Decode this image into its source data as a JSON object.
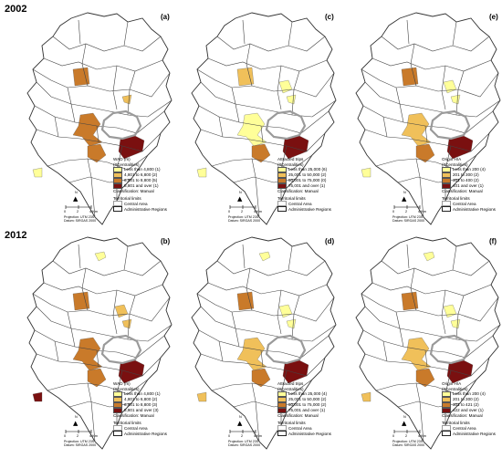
{
  "years": [
    "2002",
    "2012"
  ],
  "colors": {
    "class1": "#ffff99",
    "class2": "#f0c05a",
    "class3": "#c97a2a",
    "class4": "#7a1010",
    "central": "#d8d8d8",
    "border": "#333333"
  },
  "panels": [
    {
      "id": "a",
      "label": "(a)",
      "year": "2002",
      "legend_title": "WAD (m)",
      "legend_sub": "(#Centralities)",
      "items": [
        "Less than 4,800 (1)",
        "4,801 to 6,800 (2)",
        "6,801 to 8,800 (5)",
        "8,801 and over (1)"
      ],
      "classification": "Classification: Manual",
      "territorial": "Territorial limits",
      "central": "Central Area",
      "admin": "Administrative Regions",
      "regions": {
        "r1": 0,
        "r2": 0,
        "r3": 3,
        "r4": 2,
        "r5": 3,
        "r6": 3,
        "r7": 1,
        "r8": 4
      }
    },
    {
      "id": "c",
      "label": "(c)",
      "year": "2002",
      "legend_title": "Attracted trips",
      "legend_sub": "(#Centralities)",
      "items": [
        "Less than 25,000 (6)",
        "25,001 to 50,000 (2)",
        "50,001 to 75,000 (0)",
        "75,001 and over (1)"
      ],
      "classification": "Classification: Manual",
      "territorial": "Territorial limits",
      "central": "Central Area",
      "admin": "Administrative Regions",
      "regions": {
        "r1": 0,
        "r2": 1,
        "r3": 2,
        "r4": 1,
        "r5": 1,
        "r6": 3,
        "r7": 1,
        "r8": 4
      }
    },
    {
      "id": "e",
      "label": "(e)",
      "year": "2002",
      "legend_title": "Origin H/A",
      "legend_sub": "(#Centralities)",
      "items": [
        "Less than 200 (4)",
        "201 to 300 (2)",
        "301 to 400 (2)",
        "401 and over (1)"
      ],
      "classification": "Classification: Manual",
      "territorial": "Territorial limits",
      "central": "Central Area",
      "admin": "Administrative Regions",
      "regions": {
        "r1": 0,
        "r2": 1,
        "r3": 3,
        "r4": 1,
        "r5": 2,
        "r6": 3,
        "r7": 1,
        "r8": 4
      }
    },
    {
      "id": "b",
      "label": "(b)",
      "year": "2012",
      "legend_title": "WAD (m)",
      "legend_sub": "(#Centralities)",
      "items": [
        "Less than 4,800 (1)",
        "4,801 to 6,800 (2)",
        "6,801 to 8,800 (3)",
        "8,801 and over (3)"
      ],
      "classification": "Classification: Manual",
      "territorial": "Territorial limits",
      "central": "Central Area",
      "admin": "Administrative Regions",
      "regions": {
        "r1": 1,
        "r2": 2,
        "r3": 3,
        "r4": 2,
        "r5": 3,
        "r6": 3,
        "r7": 4,
        "r8": 4
      }
    },
    {
      "id": "d",
      "label": "(d)",
      "year": "2012",
      "legend_title": "Attracted trips",
      "legend_sub": "(#Centralities)",
      "items": [
        "Less than 25,000 (4)",
        "25,001 to 50,000 (2)",
        "50,001 to 75,000 (2)",
        "75,001 and over (1)"
      ],
      "classification": "Classification: Manual",
      "territorial": "Territorial limits",
      "central": "Central Area",
      "admin": "Administrative Regions",
      "regions": {
        "r1": 1,
        "r2": 1,
        "r3": 3,
        "r4": 1,
        "r5": 2,
        "r6": 3,
        "r7": 2,
        "r8": 4
      }
    },
    {
      "id": "f",
      "label": "(f)",
      "year": "2012",
      "legend_title": "Origin H/A",
      "legend_sub": "(#Centralities)",
      "items": [
        "Less than 200 (4)",
        "201 to 300 (2)",
        "301 to 421 (2)",
        "422 and over (1)"
      ],
      "classification": "Classification: Manual",
      "territorial": "Territorial limits",
      "central": "Central Area",
      "admin": "Administrative Regions",
      "regions": {
        "r1": 1,
        "r2": 1,
        "r3": 3,
        "r4": 1,
        "r5": 2,
        "r6": 3,
        "r7": 2,
        "r8": 4
      }
    }
  ],
  "scale": {
    "ticks": [
      "0",
      "2",
      "4 Km"
    ]
  },
  "north": "N",
  "projection": [
    "Projection: UTM 23S",
    "Datum: SIRGAS 2000"
  ]
}
